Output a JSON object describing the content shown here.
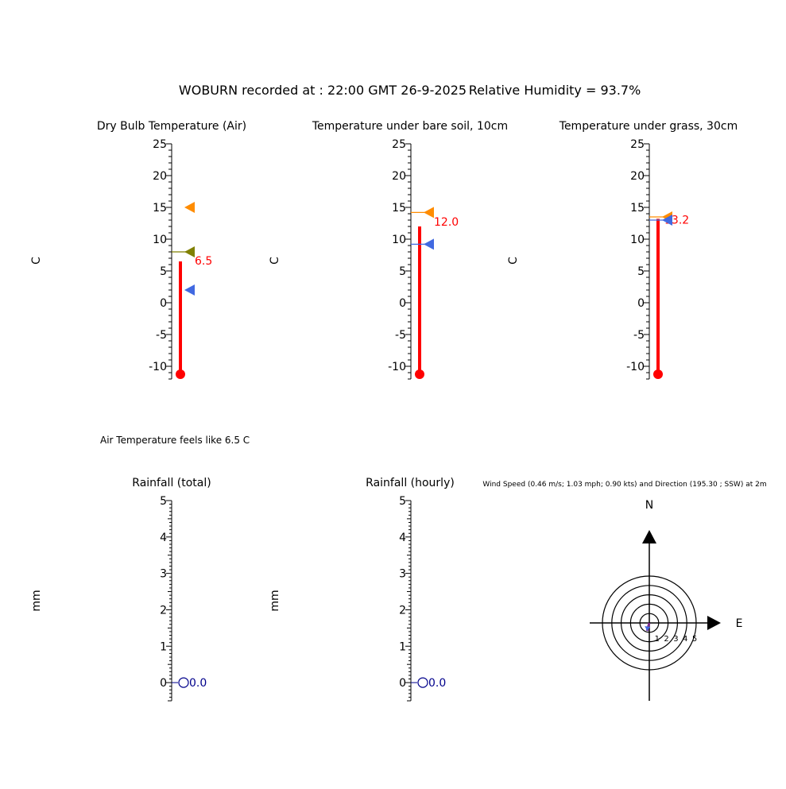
{
  "header": {
    "station_text": "WOBURN recorded at : 22:00 GMT  26-9-2025",
    "humidity_text": "Relative Humidity = 93.7%"
  },
  "feels_like_text": "Air Temperature feels like 6.5 C",
  "colors": {
    "mercury": "#ff0000",
    "current_max": "#ff8c00",
    "current_min": "#4169e1",
    "dew_point": "#808000",
    "rain": "#00008b",
    "axis": "#000000"
  },
  "chart_data": [
    {
      "type": "thermometer",
      "title": "Dry Bulb Temperature (Air)",
      "ylabel": "C",
      "ylim": [
        -12,
        25
      ],
      "ticks": [
        -10,
        -5,
        0,
        5,
        10,
        15,
        20,
        25
      ],
      "tick_labels": [
        "-10",
        "-5",
        "0",
        "5",
        "10",
        "15",
        "20",
        "25"
      ],
      "value": 6.5,
      "value_label": "6.5",
      "markers": [
        {
          "kind": "max",
          "value": 15.0,
          "color": "#ff8c00",
          "line": false
        },
        {
          "kind": "dew",
          "value": 8.0,
          "color": "#808000",
          "line": true
        },
        {
          "kind": "min",
          "value": 2.0,
          "color": "#4169e1",
          "line": false
        }
      ]
    },
    {
      "type": "thermometer",
      "title": "Temperature under bare soil, 10cm",
      "ylabel": "C",
      "ylim": [
        -12,
        25
      ],
      "ticks": [
        -10,
        -5,
        0,
        5,
        10,
        15,
        20,
        25
      ],
      "tick_labels": [
        "-10",
        "-5",
        "0",
        "5",
        "10",
        "15",
        "20",
        "25"
      ],
      "value": 12.0,
      "value_label": "12.0",
      "markers": [
        {
          "kind": "max",
          "value": 14.2,
          "color": "#ff8c00",
          "line": true
        },
        {
          "kind": "min",
          "value": 9.2,
          "color": "#4169e1",
          "line": true
        }
      ]
    },
    {
      "type": "thermometer",
      "title": "Temperature under grass, 30cm",
      "ylabel": "C",
      "ylim": [
        -12,
        25
      ],
      "ticks": [
        -10,
        -5,
        0,
        5,
        10,
        15,
        20,
        25
      ],
      "tick_labels": [
        "-10",
        "-5",
        "0",
        "5",
        "10",
        "15",
        "20",
        "25"
      ],
      "value": 13.2,
      "value_label": "13.2",
      "markers": [
        {
          "kind": "max",
          "value": 13.5,
          "color": "#ff8c00",
          "line": true
        },
        {
          "kind": "min",
          "value": 13.0,
          "color": "#4169e1",
          "line": true
        }
      ]
    },
    {
      "type": "rain_gauge",
      "title": "Rainfall (total)",
      "ylabel": "mm",
      "ylim": [
        0,
        5
      ],
      "ticks": [
        0,
        1,
        2,
        3,
        4,
        5
      ],
      "tick_labels": [
        "0",
        "1",
        "2",
        "3",
        "4",
        "5"
      ],
      "value": 0.0,
      "value_label": "0.0"
    },
    {
      "type": "rain_gauge",
      "title": "Rainfall (hourly)",
      "ylabel": "mm",
      "ylim": [
        0,
        5
      ],
      "ticks": [
        0,
        1,
        2,
        3,
        4,
        5
      ],
      "tick_labels": [
        "0",
        "1",
        "2",
        "3",
        "4",
        "5"
      ],
      "value": 0.0,
      "value_label": "0.0"
    },
    {
      "type": "polar",
      "title": "Wind Speed (0.46 m/s; 1.03 mph; 0.90 kts) and Direction (195.30 ; SSW) at 2m",
      "north_label": "N",
      "east_label": "E",
      "rings": [
        1,
        2,
        3,
        4,
        5
      ],
      "ring_labels": [
        "1",
        "2",
        "3",
        "4",
        "5"
      ],
      "speed": 0.46,
      "direction_deg": 195.3
    }
  ]
}
